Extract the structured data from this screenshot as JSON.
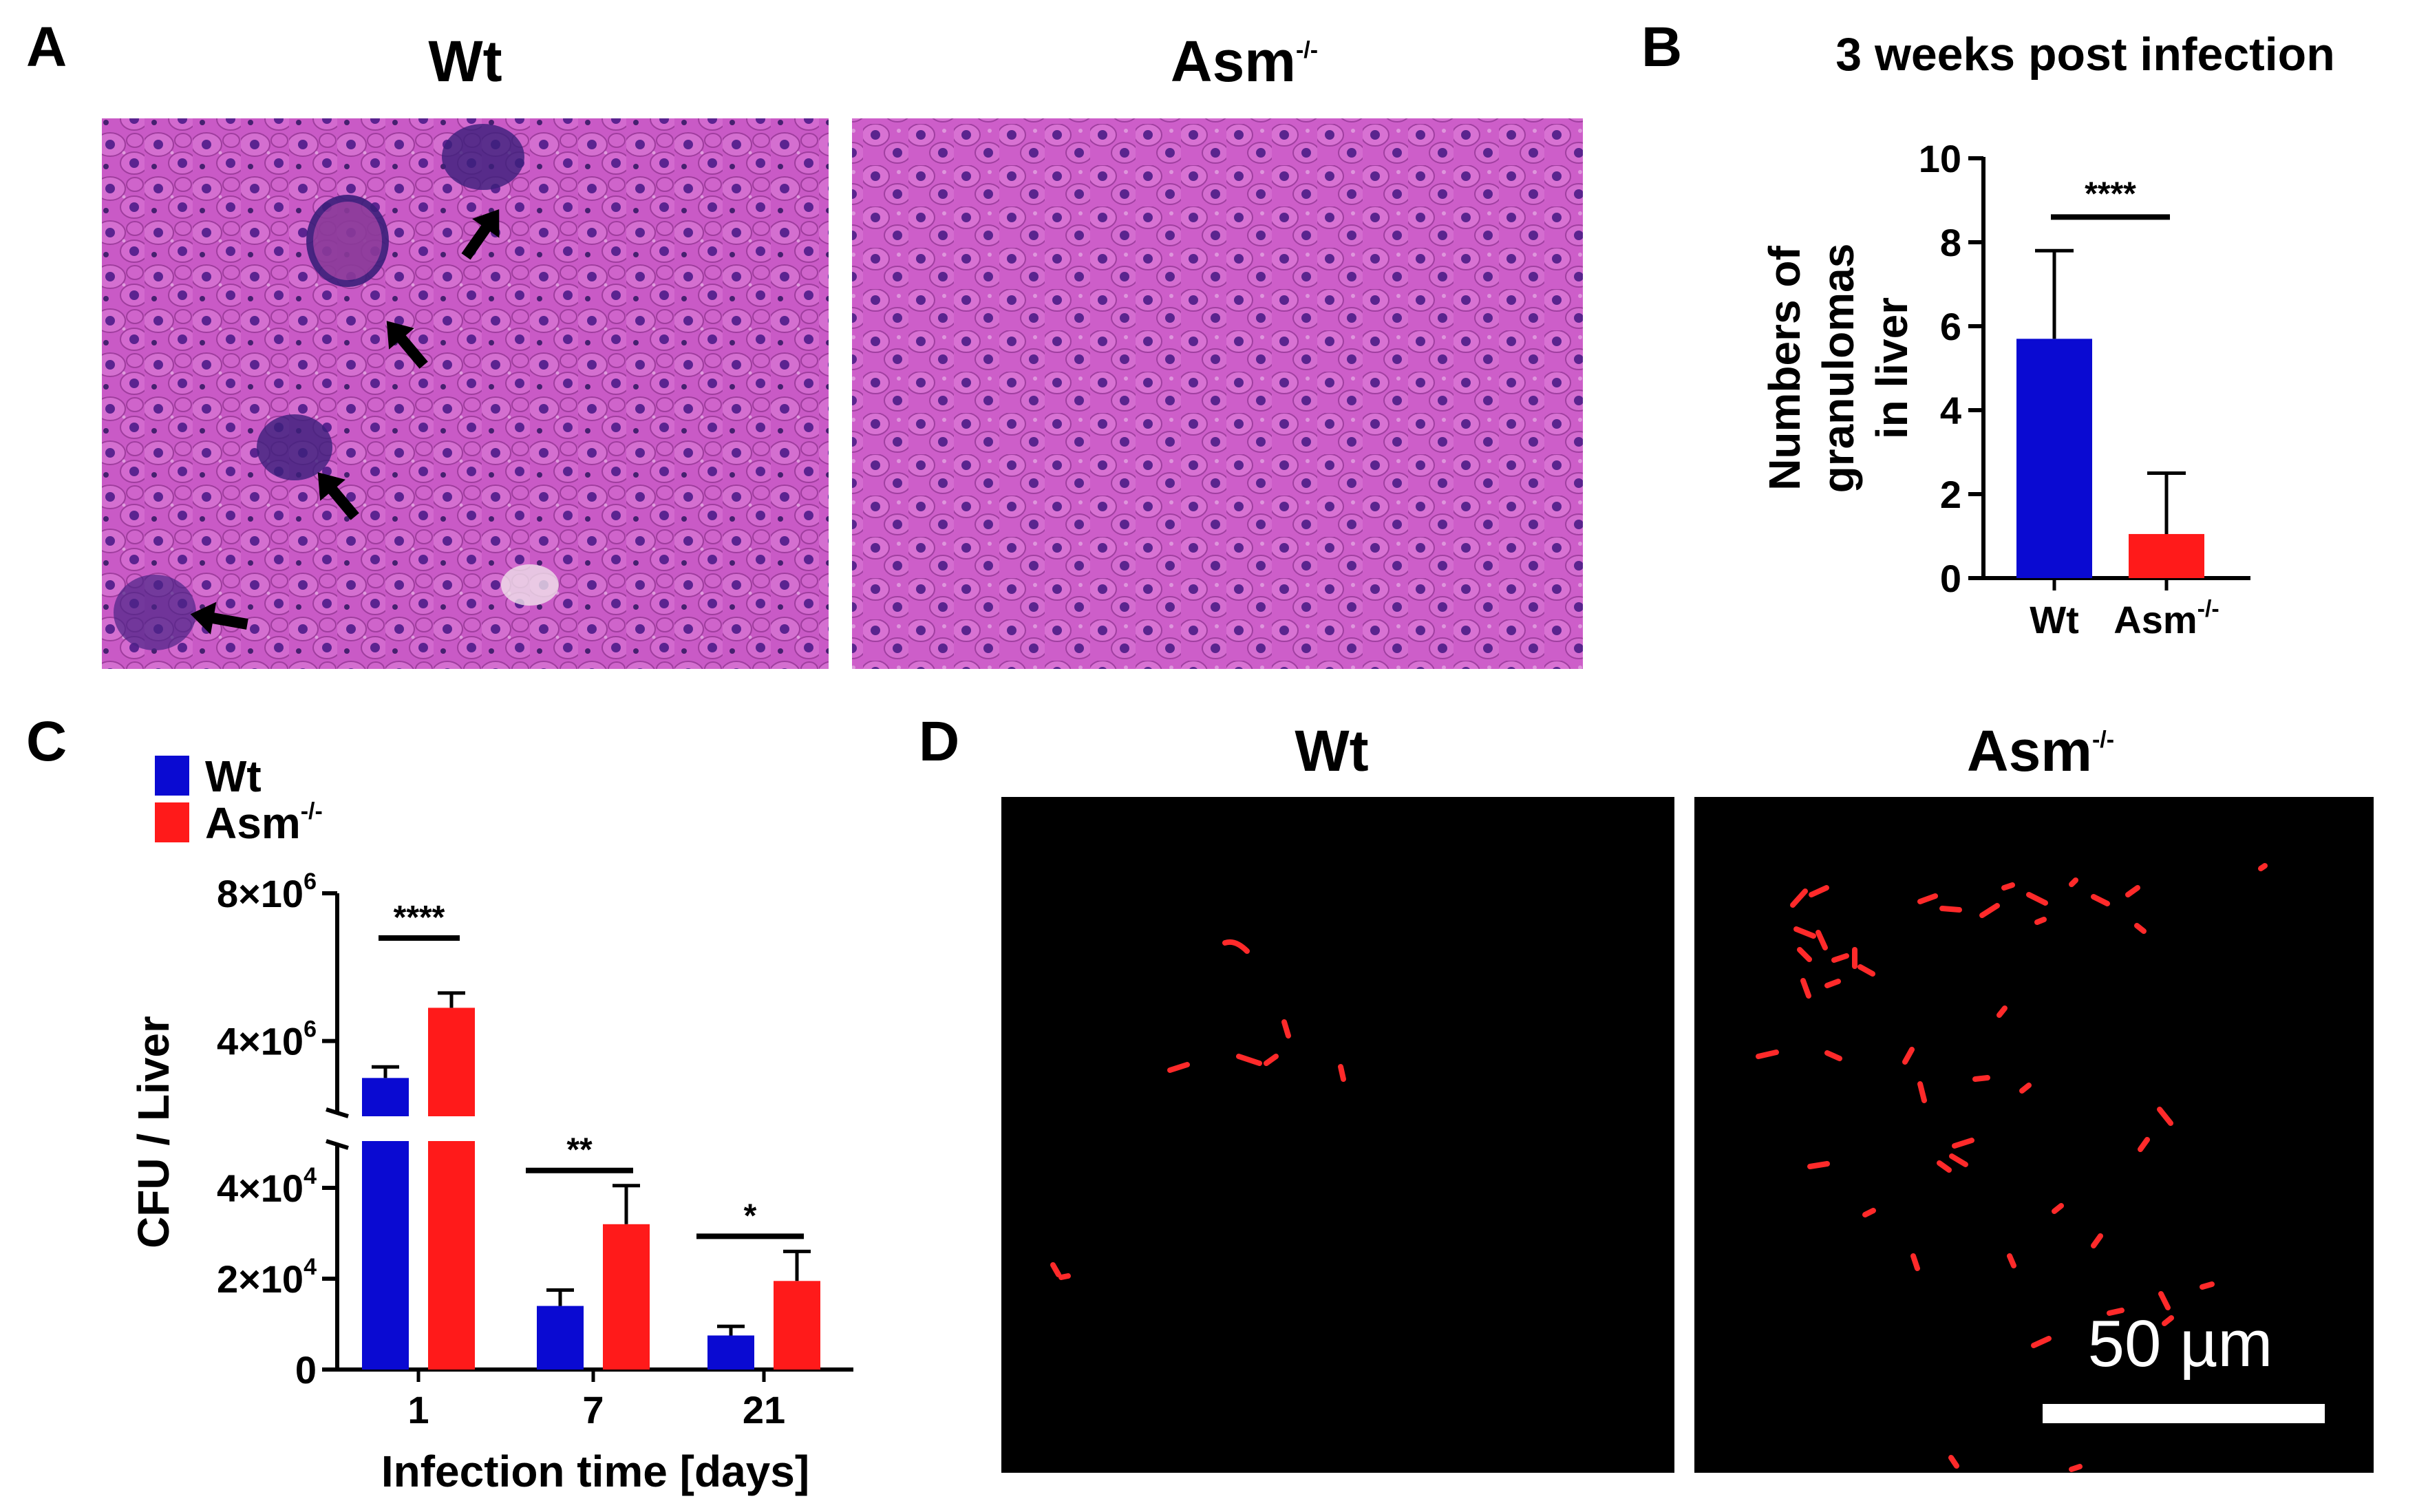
{
  "panels": {
    "A": {
      "letter": "A",
      "wt_label": "Wt",
      "asm_label": "Asm",
      "asm_sup": "-/-"
    },
    "B": {
      "letter": "B"
    },
    "C": {
      "letter": "C"
    },
    "D": {
      "letter": "D",
      "wt_label": "Wt",
      "asm_label": "Asm",
      "asm_sup": "-/-",
      "scale_bar_label": "50 µm"
    }
  },
  "colors": {
    "wt": "#0a0ad2",
    "asm": "#ff1a1a",
    "he_bg": "#c95ac6",
    "fluor": "#ff2a2a"
  },
  "chart_data": [
    {
      "panel": "B",
      "type": "bar",
      "title": "3 weeks post infection",
      "ylabel": "Numbers of granulomas in liver",
      "ylabel_lines": [
        "Numbers of",
        "granulomas",
        "in liver"
      ],
      "categories": [
        "Wt",
        "Asm-/-"
      ],
      "category_labels": [
        {
          "main": "Wt",
          "sup": ""
        },
        {
          "main": "Asm",
          "sup": "-/-"
        }
      ],
      "values": [
        5.7,
        1.05
      ],
      "errors": [
        2.1,
        1.45
      ],
      "ylim": [
        0,
        10
      ],
      "yticks": [
        0,
        2,
        4,
        6,
        8,
        10
      ],
      "ytick_labels": [
        "0",
        "2",
        "4",
        "6",
        "8",
        "10"
      ],
      "significance": "****"
    },
    {
      "panel": "C",
      "type": "bar",
      "xlabel": "Infection time [days]",
      "ylabel": "CFU / Liver",
      "categories": [
        "1",
        "7",
        "21"
      ],
      "series": [
        {
          "name": "Wt",
          "name_sup": "",
          "values": [
            3000000,
            14000,
            7500
          ],
          "errors": [
            300000,
            3500,
            2000
          ]
        },
        {
          "name": "Asm",
          "name_sup": "-/-",
          "values": [
            4900000,
            32000,
            19500
          ],
          "errors": [
            400000,
            8500,
            6500
          ]
        }
      ],
      "axis_break": true,
      "lower_ylim": [
        0,
        50000
      ],
      "upper_ylim": [
        2000000,
        8000000
      ],
      "lower_ticks": [
        {
          "value": 0,
          "base": "0",
          "exp": ""
        },
        {
          "value": 20000,
          "base": "2×10",
          "exp": "4"
        },
        {
          "value": 40000,
          "base": "4×10",
          "exp": "4"
        }
      ],
      "upper_ticks": [
        {
          "value": 4000000,
          "base": "4×10",
          "exp": "6"
        },
        {
          "value": 8000000,
          "base": "8×10",
          "exp": "6"
        }
      ],
      "significance": [
        "****",
        "**",
        "*"
      ],
      "legend_position": "top-left"
    }
  ]
}
